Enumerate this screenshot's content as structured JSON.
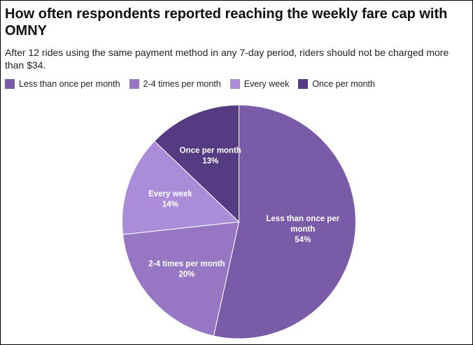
{
  "chart_data": {
    "type": "pie",
    "title": "How often respondents reported reaching the weekly fare cap with OMNY",
    "subtitle": "After 12 rides using the same payment method in any 7-day period, riders should not be charged more than $34.",
    "legend_position": "top-left",
    "slices": [
      {
        "label": "Less than once per month",
        "value": 54,
        "display": "54%",
        "color": "#7a5ba8",
        "label_lines": [
          "Less than once per",
          "month"
        ]
      },
      {
        "label": "2-4 times per month",
        "value": 20,
        "display": "20%",
        "color": "#9777c4",
        "label_lines": [
          "2-4 times per month"
        ]
      },
      {
        "label": "Every week",
        "value": 14,
        "display": "14%",
        "color": "#ab8cd8",
        "label_lines": [
          "Every week"
        ]
      },
      {
        "label": "Once per month",
        "value": 13,
        "display": "13%",
        "color": "#553c82",
        "label_lines": [
          "Once per month"
        ]
      }
    ]
  }
}
